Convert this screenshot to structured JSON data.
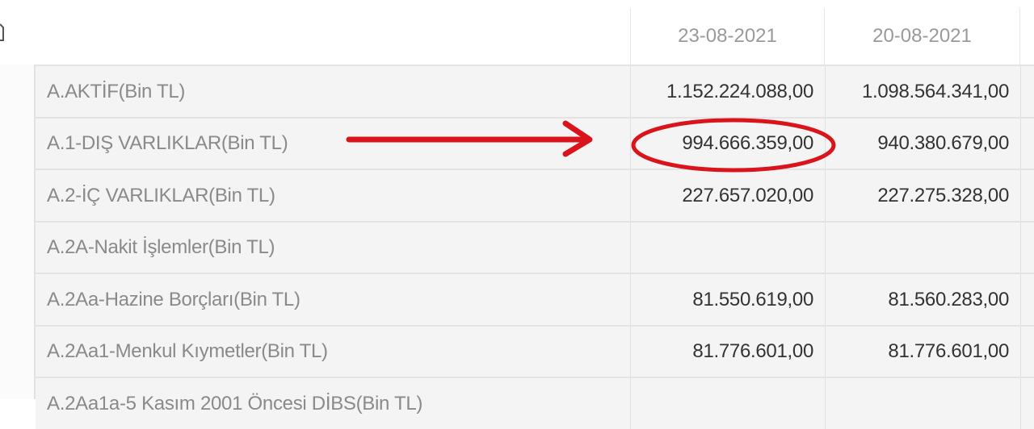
{
  "header": {
    "columns": [
      "23-08-2021",
      "20-08-2021"
    ]
  },
  "rows": [
    {
      "label": "A.AKTİF(Bin TL)",
      "values": [
        "1.152.224.088,00",
        "1.098.564.341,00"
      ]
    },
    {
      "label": "A.1-DIŞ VARLIKLAR(Bin TL)",
      "values": [
        "994.666.359,00",
        "940.380.679,00"
      ],
      "highlighted": true
    },
    {
      "label": "A.2-İÇ VARLIKLAR(Bin TL)",
      "values": [
        "227.657.020,00",
        "227.275.328,00"
      ]
    },
    {
      "label": "A.2A-Nakit İşlemler(Bin TL)",
      "values": [
        "",
        ""
      ]
    },
    {
      "label": "A.2Aa-Hazine Borçları(Bin TL)",
      "values": [
        "81.550.619,00",
        "81.560.283,00"
      ]
    },
    {
      "label": "A.2Aa1-Menkul Kıymetler(Bin TL)",
      "values": [
        "81.776.601,00",
        "81.776.601,00"
      ]
    },
    {
      "label": "A.2Aa1a-5 Kasım 2001 Öncesi DİBS(Bin TL)",
      "values": [
        "",
        ""
      ]
    }
  ],
  "annotation": {
    "color": "#d9141b",
    "icons": [
      "arrow-right-icon",
      "circle-highlight-icon"
    ]
  }
}
